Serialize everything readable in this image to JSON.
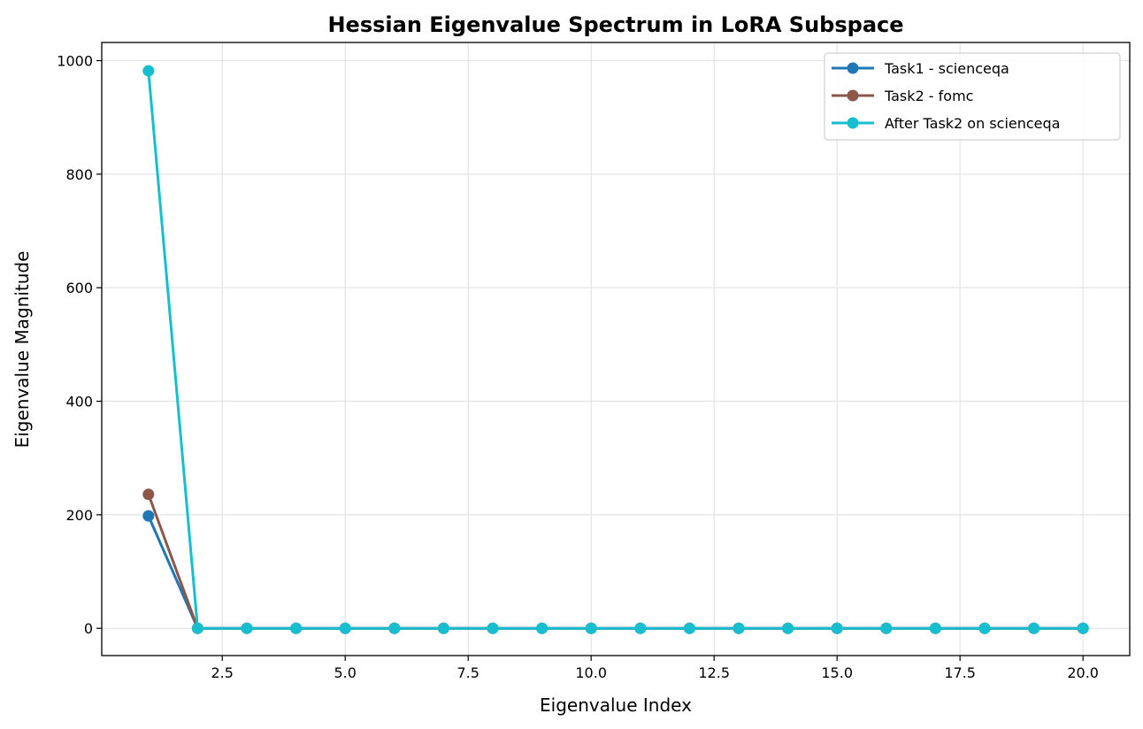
{
  "chart_data": {
    "type": "line",
    "title": "Hessian Eigenvalue Spectrum in LoRA Subspace",
    "xlabel": "Eigenvalue Index",
    "ylabel": "Eigenvalue Magnitude",
    "xlim": [
      0.05,
      20.95
    ],
    "ylim": [
      -48,
      1032
    ],
    "xticks": [
      2.5,
      5.0,
      7.5,
      10.0,
      12.5,
      15.0,
      17.5,
      20.0
    ],
    "xtick_labels": [
      "2.5",
      "5.0",
      "7.5",
      "10.0",
      "12.5",
      "15.0",
      "17.5",
      "20.0"
    ],
    "yticks": [
      0,
      200,
      400,
      600,
      800,
      1000
    ],
    "ytick_labels": [
      "0",
      "200",
      "400",
      "600",
      "800",
      "1000"
    ],
    "grid": true,
    "legend_position": "top-right",
    "x": [
      1,
      2,
      3,
      4,
      5,
      6,
      7,
      8,
      9,
      10,
      11,
      12,
      13,
      14,
      15,
      16,
      17,
      18,
      19,
      20
    ],
    "series": [
      {
        "name": "Task1 - scienceqa",
        "color": "#1f77b4",
        "values": [
          198,
          0,
          0,
          0,
          0,
          0,
          0,
          0,
          0,
          0,
          0,
          0,
          0,
          0,
          0,
          0,
          0,
          0,
          0,
          0
        ]
      },
      {
        "name": "Task2 - fomc",
        "color": "#8c564b",
        "values": [
          236,
          0,
          0,
          0,
          0,
          0,
          0,
          0,
          0,
          0,
          0,
          0,
          0,
          0,
          0,
          0,
          0,
          0,
          0,
          0
        ]
      },
      {
        "name": "After Task2 on scienceqa",
        "color": "#17becf",
        "values": [
          982,
          0,
          0,
          0,
          0,
          0,
          0,
          0,
          0,
          0,
          0,
          0,
          0,
          0,
          0,
          0,
          0,
          0,
          0,
          0
        ]
      }
    ]
  }
}
